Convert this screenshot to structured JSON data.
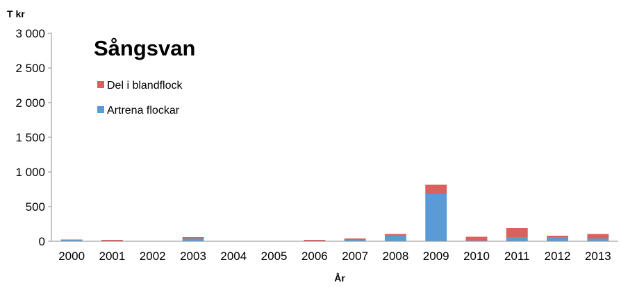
{
  "chart_data": {
    "type": "bar",
    "stacked": true,
    "title": "Sångsvan",
    "ylabel": "T kr",
    "xlabel": "År",
    "ylim": [
      0,
      3000
    ],
    "yticks": [
      0,
      500,
      1000,
      1500,
      2000,
      2500,
      3000
    ],
    "ytick_labels": [
      "0",
      "500",
      "1 000",
      "1 500",
      "2 000",
      "2 500",
      "3 000"
    ],
    "categories": [
      "2000",
      "2001",
      "2002",
      "2003",
      "2004",
      "2005",
      "2006",
      "2007",
      "2008",
      "2009",
      "2010",
      "2011",
      "2012",
      "2013"
    ],
    "series": [
      {
        "name": "Artrena flockar",
        "color": "#5b9bd5",
        "values": [
          20,
          5,
          0,
          40,
          0,
          0,
          5,
          20,
          80,
          680,
          10,
          60,
          60,
          40
        ]
      },
      {
        "name": "Del i blandflock",
        "color": "#d9625e",
        "values": [
          5,
          15,
          0,
          20,
          0,
          0,
          15,
          20,
          25,
          135,
          55,
          130,
          20,
          65
        ]
      }
    ],
    "legend_order": [
      "Del i blandflock",
      "Artrena flockar"
    ],
    "legend_position": "inside top-left",
    "grid": false
  }
}
